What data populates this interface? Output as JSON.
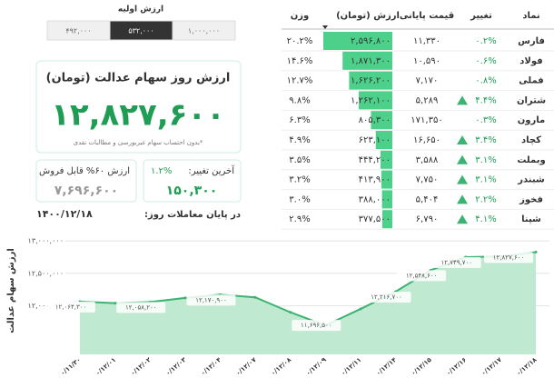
{
  "header": {
    "title": "ارزش اولیه",
    "options": [
      "۱,۰۰۰,۰۰۰",
      "۵۳۲,۰۰۰",
      "۴۹۲,۰۰۰"
    ],
    "selected": 1
  },
  "summary": {
    "title": "ارزش روز سهام عدالت (تومان)",
    "value": "۱۲,۸۲۷,۶۰۰",
    "note": "*بدون احتساب سهام غیربورسی و مطالبات نقدی",
    "change_label": "آخرین تغییر:",
    "change_percent": "۱.۲%",
    "change_value": "۱۵۰,۳۰۰",
    "sellable_label": "ارزش ۶۰% قابل فروش",
    "sellable_value": "۷,۶۹۶,۶۰۰",
    "date_label": "در پایان معاملات روز:",
    "date": "۱۴۰۰/۱۲/۱۸"
  },
  "table": {
    "columns": [
      "نماد",
      "تغییر",
      "قیمت پایانی",
      "ارزش (تومان)",
      "وزن"
    ],
    "rows": [
      {
        "symbol": "فارس",
        "change": "۰.۲%",
        "price": "۱۱,۳۳۰",
        "value": "۲,۵۹۶,۸۰۰",
        "weight": "۲۰.۲%"
      },
      {
        "symbol": "فولاد",
        "change": "۰.۶%",
        "price": "۱۰,۵۹۰",
        "value": "۱,۸۷۱,۳۰۰",
        "weight": "۱۴.۶%"
      },
      {
        "symbol": "فملی",
        "change": "۰.۸%",
        "price": "۷,۱۷۰",
        "value": "۱,۶۲۶,۲۰۰",
        "weight": "۱۲.۷%"
      },
      {
        "symbol": "شتران",
        "change": "۴.۴%",
        "price": "۵,۲۸۹",
        "value": "۱,۲۶۲,۱۰۰",
        "weight": "۹.۸%",
        "arrow": "up"
      },
      {
        "symbol": "مارون",
        "change": "۰.۳%",
        "price": "۱۷۱,۳۵۰",
        "value": "۸۰۵,۳۰۰",
        "weight": "۶.۳%"
      },
      {
        "symbol": "کچاد",
        "change": "۳.۴%",
        "price": "۱۶,۶۵۰",
        "value": "۶۲۳,۱۰۰",
        "weight": "۴.۹%",
        "arrow": "up"
      },
      {
        "symbol": "وبملت",
        "change": "۳.۱%",
        "price": "۳,۵۸۸",
        "value": "۴۴۴,۲۰۰",
        "weight": "۳.۵%",
        "arrow": "up"
      },
      {
        "symbol": "شبندر",
        "change": "۳.۱%",
        "price": "۷,۷۵۰",
        "value": "۴۱۳,۹۰۰",
        "weight": "۳.۲%",
        "arrow": "up"
      },
      {
        "symbol": "فخوز",
        "change": "۲.۲%",
        "price": "۵,۴۰۴",
        "value": "۳۸۸,۰۰۰",
        "weight": "۳.۰%",
        "arrow": "up"
      },
      {
        "symbol": "شپنا",
        "change": "۴.۱%",
        "price": "۶,۷۹۰",
        "value": "۳۷۷,۵۰۰",
        "weight": "۲.۹%",
        "arrow": "up"
      }
    ]
  },
  "chart_data": {
    "type": "area",
    "y_label": "ارزش سهام عدالت",
    "color": "#3cb371",
    "categories": [
      "۱۴۰۰/۱۱/۳۰",
      "۱۴۰۰/۱۲/۰۱",
      "۱۴۰۰/۱۲/۰۲",
      "۱۴۰۰/۱۲/۰۳",
      "۱۴۰۰/۱۲/۰۴",
      "۱۴۰۰/۱۲/۰۷",
      "۱۴۰۰/۱۲/۰۸",
      "۱۴۰۰/۱۲/۰۹",
      "۱۴۰۰/۱۲/۱۱",
      "۱۴۰۰/۱۲/۱۴",
      "۱۴۰۰/۱۲/۱۵",
      "۱۴۰۰/۱۲/۱۶",
      "۱۴۰۰/۱۲/۱۷",
      "۱۴۰۰/۱۲/۱۸"
    ],
    "values": [
      12064300,
      12040000,
      12058200,
      12120000,
      12170900,
      12130000,
      11900000,
      11696500,
      11950000,
      12216700,
      12548600,
      12749700,
      12760000,
      12827600
    ],
    "value_labels": [
      "۱۲,۰۶۴,۳۰۰",
      null,
      "۱۲,۰۵۸,۲۰۰",
      null,
      "۱۲,۱۷۰,۹۰۰",
      null,
      null,
      "۱۱,۶۹۶,۵۰۰",
      null,
      "۱۲,۲۱۶,۷۰۰",
      "۱۲,۵۴۸,۶۰۰",
      "۱۲,۷۴۹,۷۰۰",
      null,
      "۱۲,۸۲۷,۶۰۰"
    ],
    "ylim": [
      11250000,
      13100000
    ],
    "yticks": [
      {
        "value": 12000000,
        "label": "۱۲,۰۰۰,۰۰۰"
      },
      {
        "value": 12500000,
        "label": "۱۲,۵۰۰,۰۰۰"
      },
      {
        "value": 13000000,
        "label": "۱۳,۰۰۰,۰۰۰"
      }
    ],
    "grid": true
  }
}
